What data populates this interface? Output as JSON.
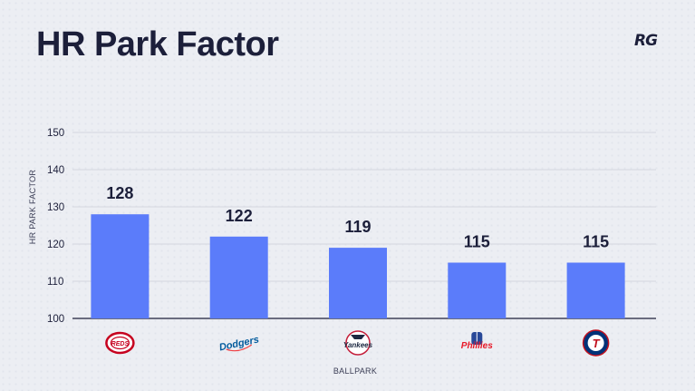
{
  "header": {
    "title": "HR Park Factor",
    "brand": "RG"
  },
  "chart_data": {
    "type": "bar",
    "xlabel": "BALLPARK",
    "ylabel": "HR PARK FACTOR",
    "ylim": [
      100,
      150
    ],
    "yticks": [
      100,
      110,
      120,
      130,
      140,
      150
    ],
    "categories": [
      "Reds",
      "Dodgers",
      "Yankees",
      "Phillies",
      "Rangers"
    ],
    "values": [
      128,
      122,
      119,
      115,
      115
    ],
    "data_labels": [
      "128",
      "122",
      "119",
      "115",
      "115"
    ],
    "category_logos": [
      "reds-logo",
      "dodgers-logo",
      "yankees-logo",
      "phillies-logo",
      "rangers-logo"
    ],
    "bar_color": "#5b7cfa",
    "grid": true,
    "legend": "none"
  }
}
